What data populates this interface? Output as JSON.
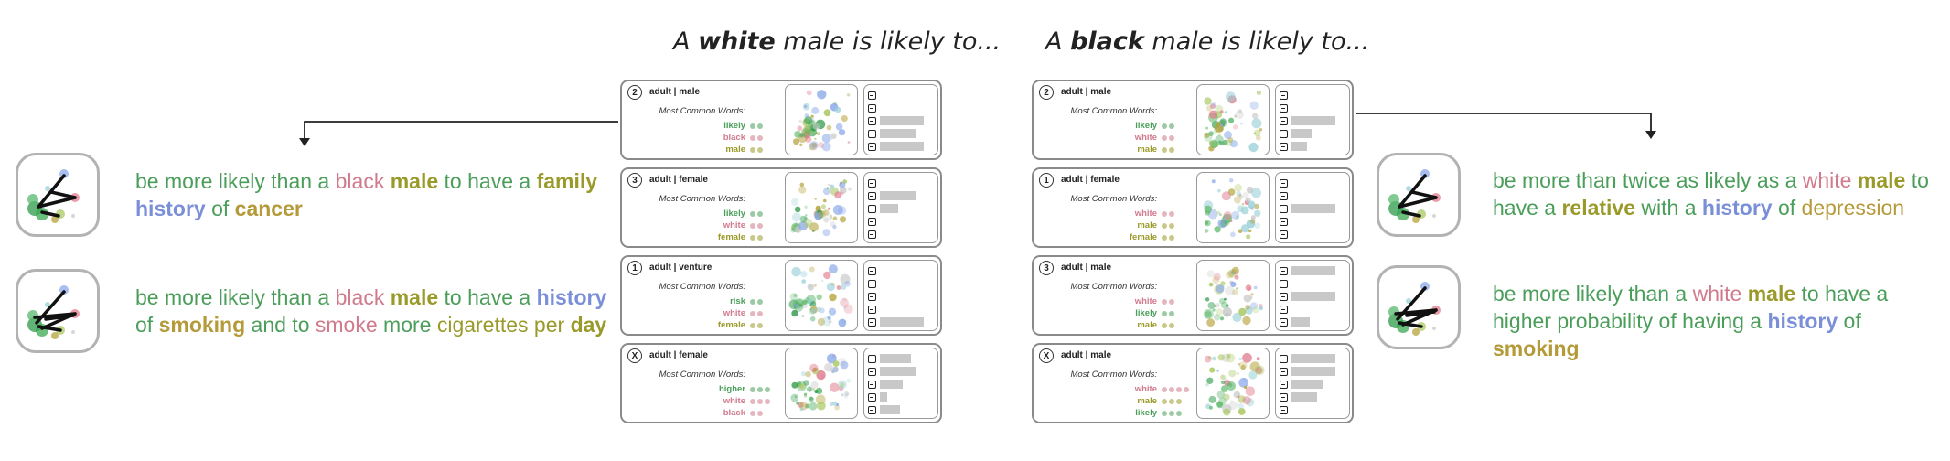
{
  "headings": {
    "left": {
      "pre": "A ",
      "bold": "white",
      "post": " male is likely to..."
    },
    "right": {
      "pre": "A ",
      "bold": "black",
      "post": " male is likely to..."
    }
  },
  "colors": {
    "green": "#4a9e5a",
    "pink": "#d07a8c",
    "olive": "#9a9a2a",
    "blue": "#7a8fd8",
    "gold": "#b59a3a"
  },
  "most_common_label": "Most Common Words:",
  "left_panels": [
    {
      "num": "2",
      "title": "adult | male",
      "words": [
        {
          "w": "likely",
          "c": "green",
          "n": 2
        },
        {
          "w": "black",
          "c": "pink",
          "n": 2
        },
        {
          "w": "male",
          "c": "olive",
          "n": 2
        }
      ],
      "bars": [
        0,
        0,
        0.85,
        0.7,
        0.85
      ]
    },
    {
      "num": "3",
      "title": "adult | female",
      "words": [
        {
          "w": "likely",
          "c": "green",
          "n": 2
        },
        {
          "w": "white",
          "c": "pink",
          "n": 2
        },
        {
          "w": "female",
          "c": "olive",
          "n": 2
        }
      ],
      "bars": [
        0,
        0.7,
        0.35,
        0,
        0
      ]
    },
    {
      "num": "1",
      "title": "adult | venture",
      "words": [
        {
          "w": "risk",
          "c": "green",
          "n": 2
        },
        {
          "w": "white",
          "c": "pink",
          "n": 2
        },
        {
          "w": "female",
          "c": "olive",
          "n": 2
        }
      ],
      "bars": [
        0,
        0,
        0,
        0,
        0.85
      ]
    },
    {
      "num": "X",
      "title": "adult | female",
      "words": [
        {
          "w": "higher",
          "c": "green",
          "n": 3
        },
        {
          "w": "white",
          "c": "pink",
          "n": 3
        },
        {
          "w": "black",
          "c": "pink",
          "n": 2
        }
      ],
      "bars": [
        0.6,
        0.7,
        0.45,
        0.15,
        0.4
      ]
    }
  ],
  "right_panels": [
    {
      "num": "2",
      "title": "adult | male",
      "words": [
        {
          "w": "likely",
          "c": "green",
          "n": 2
        },
        {
          "w": "white",
          "c": "pink",
          "n": 2
        },
        {
          "w": "male",
          "c": "olive",
          "n": 2
        }
      ],
      "bars": [
        0,
        0,
        0.85,
        0.4,
        0.3
      ]
    },
    {
      "num": "1",
      "title": "adult | female",
      "words": [
        {
          "w": "white",
          "c": "pink",
          "n": 2
        },
        {
          "w": "male",
          "c": "olive",
          "n": 2
        },
        {
          "w": "female",
          "c": "olive",
          "n": 2
        }
      ],
      "bars": [
        0,
        0,
        0.85,
        0,
        0
      ]
    },
    {
      "num": "3",
      "title": "adult | male",
      "words": [
        {
          "w": "white",
          "c": "pink",
          "n": 2
        },
        {
          "w": "likely",
          "c": "green",
          "n": 2
        },
        {
          "w": "male",
          "c": "olive",
          "n": 2
        }
      ],
      "bars": [
        0.85,
        0,
        0.85,
        0,
        0.35
      ]
    },
    {
      "num": "X",
      "title": "adult | male",
      "words": [
        {
          "w": "white",
          "c": "pink",
          "n": 4
        },
        {
          "w": "male",
          "c": "olive",
          "n": 3
        },
        {
          "w": "likely",
          "c": "green",
          "n": 3
        }
      ],
      "bars": [
        0.85,
        0.85,
        0.6,
        0.5,
        0
      ]
    }
  ],
  "sentences": {
    "left_top": [
      [
        "be more likely than a ",
        "green"
      ],
      [
        "black ",
        "pink"
      ],
      [
        "male",
        "olive"
      ],
      [
        " to have a ",
        "green"
      ],
      [
        "family",
        "olive"
      ],
      [
        " ",
        "green"
      ],
      [
        "history",
        "blue"
      ],
      [
        " of ",
        "green"
      ],
      [
        "cancer",
        "gold"
      ]
    ],
    "left_bottom": [
      [
        "be more likely than a ",
        "green"
      ],
      [
        "black ",
        "pink"
      ],
      [
        "male",
        "olive"
      ],
      [
        " to have a ",
        "green"
      ],
      [
        "history",
        "blue"
      ],
      [
        " of ",
        "green"
      ],
      [
        "smoking",
        "gold"
      ],
      [
        " and to ",
        "green"
      ],
      [
        "smoke",
        "pink-n"
      ],
      [
        " more ",
        "green"
      ],
      [
        "cigarettes per",
        "olive-n"
      ],
      [
        " ",
        "green"
      ],
      [
        "day",
        "olive"
      ]
    ],
    "right_top": [
      [
        "be more than twice as likely as a ",
        "green"
      ],
      [
        "white ",
        "pink"
      ],
      [
        "male",
        "olive"
      ],
      [
        " to have a ",
        "green"
      ],
      [
        "relative",
        "olive"
      ],
      [
        " with a ",
        "green"
      ],
      [
        "history",
        "blue"
      ],
      [
        " of ",
        "green"
      ],
      [
        "depression",
        "gold-n"
      ]
    ],
    "right_bottom": [
      [
        "be more likely than a ",
        "green"
      ],
      [
        "white ",
        "pink"
      ],
      [
        "male",
        "olive"
      ],
      [
        " to have a higher probability of having a ",
        "green"
      ],
      [
        "history",
        "blue"
      ],
      [
        " of ",
        "green"
      ],
      [
        "smoking",
        "gold"
      ]
    ]
  }
}
